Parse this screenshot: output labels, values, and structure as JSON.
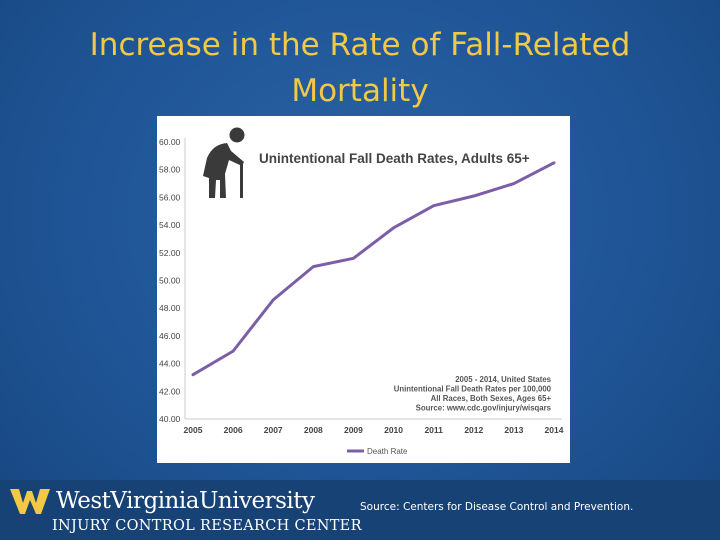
{
  "slide": {
    "title_line1": "Increase in the Rate of Fall-Related",
    "title_line2": "Mortality",
    "source": "Source: Centers for Disease Control and Prevention."
  },
  "logo": {
    "line1": "WestVirginiaUniversity",
    "line2": "INJURY CONTROL RESEARCH CENTER",
    "icon": "wv-flying-wv-icon"
  },
  "chart_data": {
    "type": "line",
    "title": "Unintentional Fall Death Rates, Adults 65+",
    "icon": "elderly-person-with-cane-icon",
    "x": [
      "2005",
      "2006",
      "2007",
      "2008",
      "2009",
      "2010",
      "2011",
      "2012",
      "2013",
      "2014"
    ],
    "series": [
      {
        "name": "Death Rate",
        "values": [
          43.2,
          44.9,
          48.6,
          51.0,
          51.6,
          53.8,
          55.4,
          56.1,
          57.0,
          58.5
        ]
      }
    ],
    "ylim": [
      40,
      60
    ],
    "yticks": [
      "60.00",
      "58.00",
      "56.00",
      "54.00",
      "52.00",
      "50.00",
      "48.00",
      "46.00",
      "44.00",
      "42.00",
      "40.00"
    ],
    "annotation": [
      "2005 - 2014, United States",
      "Unintentional Fall Death Rates per 100,000",
      "All Races, Both Sexes, Ages 65+",
      "Source: www.cdc.gov/injury/wisqars"
    ],
    "grid": false,
    "legend_position": "bottom-left",
    "line_color": "#7b5ea7"
  }
}
